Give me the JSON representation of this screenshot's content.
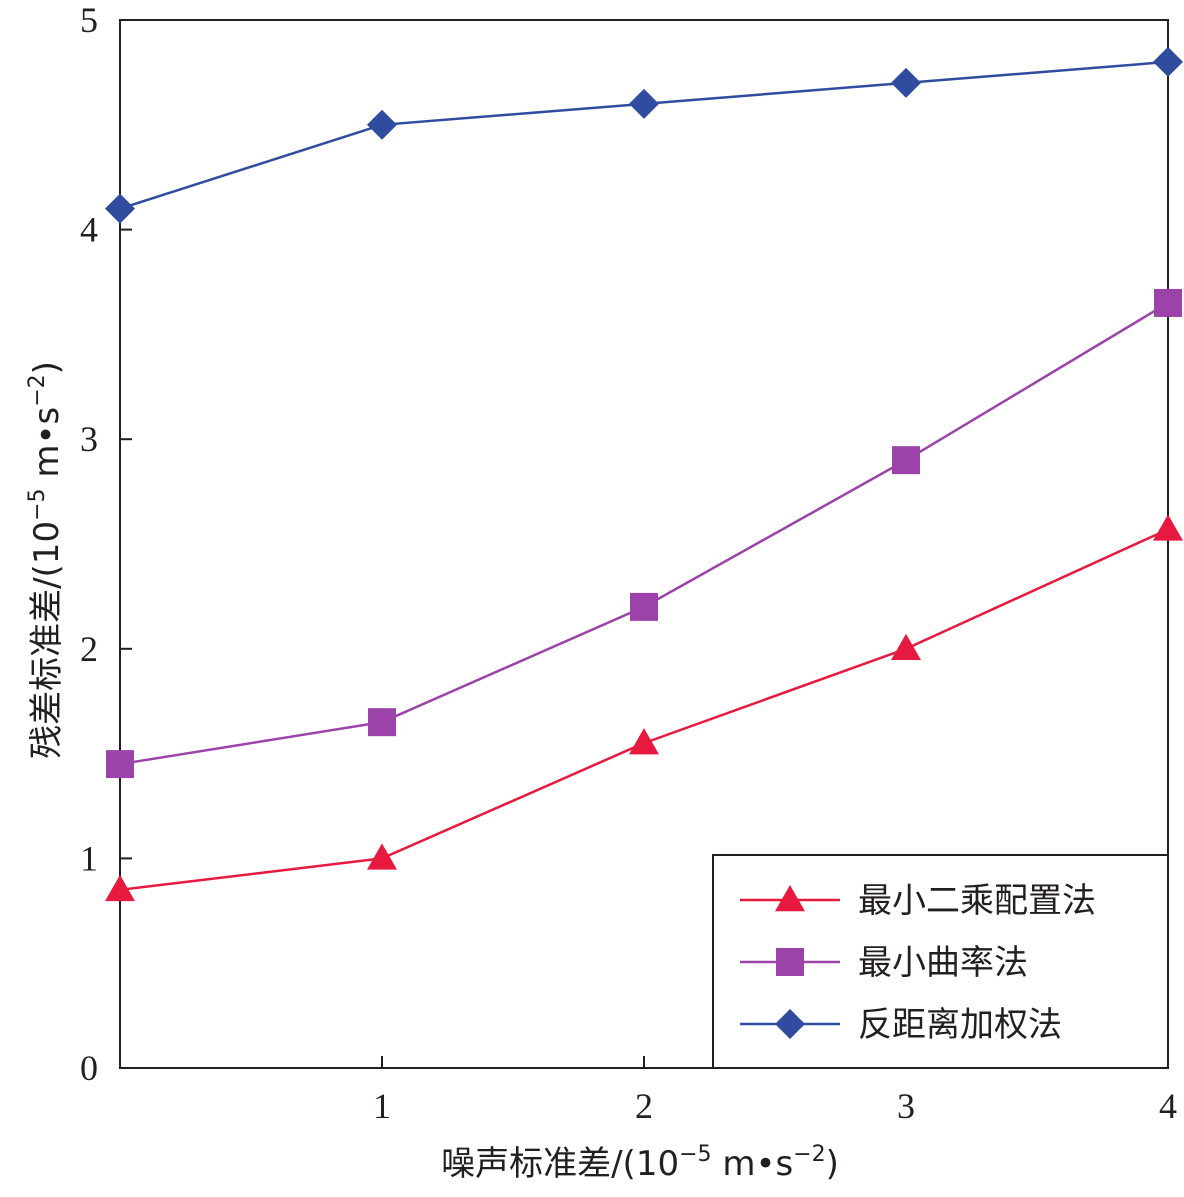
{
  "chart_data": {
    "type": "line",
    "xlabel": "噪声标准差/",
    "xunit": {
      "open": "(",
      "base": "10",
      "exp": "−5",
      "unit": " m•s",
      "unit_exp": "−2",
      "close": ")"
    },
    "ylabel": "残差标准差/",
    "yunit": {
      "open": "(",
      "base": "10",
      "exp": "−5",
      "unit": " m•s",
      "unit_exp": "−2",
      "close": ")"
    },
    "xlim": [
      0,
      4
    ],
    "ylim": [
      0,
      5
    ],
    "x": [
      0,
      1,
      2,
      3,
      4
    ],
    "xticks": [
      1,
      2,
      3,
      4
    ],
    "xtick_labels": [
      "1",
      "2",
      "3",
      "4"
    ],
    "yticks": [
      0,
      1,
      2,
      3,
      4,
      5
    ],
    "ytick_labels": [
      "0",
      "1",
      "2",
      "3",
      "4",
      "5"
    ],
    "legend_position": "bottom-right",
    "series": [
      {
        "name": "最小二乘配置法",
        "marker": "triangle",
        "color": "#e8193f",
        "values": [
          0.85,
          1.0,
          1.55,
          2.0,
          2.57
        ]
      },
      {
        "name": "最小曲率法",
        "marker": "square",
        "color": "#9b43a8",
        "values": [
          1.45,
          1.65,
          2.2,
          2.9,
          3.65
        ]
      },
      {
        "name": "反距离加权法",
        "marker": "diamond",
        "color": "#2f4c9e",
        "values": [
          4.1,
          4.5,
          4.6,
          4.7,
          4.8
        ]
      }
    ]
  }
}
